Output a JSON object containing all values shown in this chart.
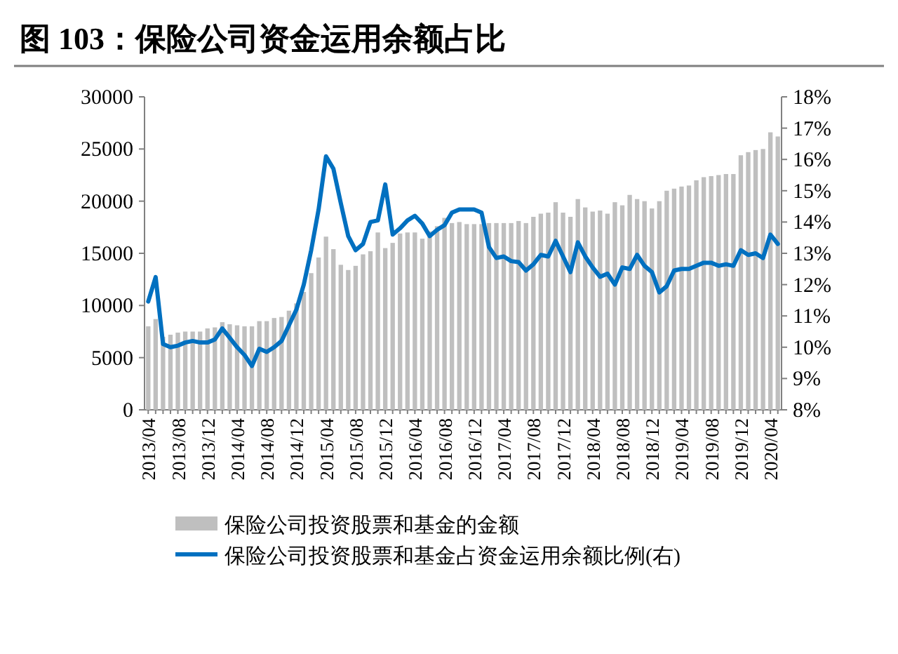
{
  "chart_data": {
    "type": "bar",
    "title": "图 103：保险公司资金运用余额占比",
    "categories": [
      "2013/04",
      null,
      null,
      null,
      "2013/08",
      null,
      null,
      null,
      "2013/12",
      null,
      null,
      null,
      "2014/04",
      null,
      null,
      null,
      "2014/08",
      null,
      null,
      null,
      "2014/12",
      null,
      null,
      null,
      "2015/04",
      null,
      null,
      null,
      "2015/08",
      null,
      null,
      null,
      "2015/12",
      null,
      null,
      null,
      "2016/04",
      null,
      null,
      null,
      "2016/08",
      null,
      null,
      null,
      "2016/12",
      null,
      null,
      null,
      "2017/04",
      null,
      null,
      null,
      "2017/08",
      null,
      null,
      null,
      "2017/12",
      null,
      null,
      null,
      "2018/04",
      null,
      null,
      null,
      "2018/08",
      null,
      null,
      null,
      "2018/12",
      null,
      null,
      null,
      "2019/04",
      null,
      null,
      null,
      "2019/08",
      null,
      null,
      null,
      "2019/12",
      null,
      null,
      null,
      "2020/04",
      null
    ],
    "series": [
      {
        "name": "保险公司投资股票和基金的金额",
        "color": "#bfbfbf",
        "values": [
          8000,
          8700,
          7000,
          7200,
          7400,
          7500,
          7500,
          7500,
          7800,
          7900,
          8400,
          8200,
          8100,
          8000,
          8000,
          8500,
          8500,
          8800,
          8900,
          9500,
          10200,
          11300,
          13100,
          14600,
          16600,
          15400,
          13900,
          13400,
          13800,
          14900,
          15200,
          17000,
          15500,
          16000,
          16900,
          17000,
          17000,
          16400,
          17100,
          17600,
          18400,
          17900,
          18000,
          17800,
          17800,
          17800,
          17900,
          17900,
          17900,
          17900,
          18100,
          17900,
          18500,
          18800,
          18900,
          19900,
          18900,
          18500,
          20200,
          19400,
          19000,
          19100,
          18800,
          19900,
          19600,
          20600,
          20200,
          20000,
          19300,
          20000,
          21000,
          21200,
          21400,
          21500,
          22000,
          22300,
          22400,
          22500,
          22600,
          22600,
          24400,
          24700,
          24900,
          25000,
          26600,
          26200
        ]
      },
      {
        "name": "保险公司投资股票和基金占资金运用余额比例(右)",
        "type": "line",
        "axis": "y2",
        "color": "#0070c0",
        "values": [
          11.46,
          12.24,
          10.1,
          10.0,
          10.05,
          10.15,
          10.2,
          10.15,
          10.15,
          10.25,
          10.6,
          10.3,
          10.0,
          9.75,
          9.4,
          9.95,
          9.85,
          10.0,
          10.2,
          10.7,
          11.2,
          12.0,
          13.1,
          14.4,
          16.1,
          15.7,
          14.6,
          13.55,
          13.1,
          13.3,
          14.0,
          14.05,
          15.2,
          13.6,
          13.8,
          14.05,
          14.2,
          13.95,
          13.55,
          13.75,
          13.9,
          14.3,
          14.4,
          14.4,
          14.4,
          14.3,
          13.2,
          12.85,
          12.9,
          12.75,
          12.72,
          12.45,
          12.65,
          12.95,
          12.9,
          13.4,
          12.9,
          12.4,
          13.35,
          12.9,
          12.55,
          12.25,
          12.35,
          12.0,
          12.55,
          12.5,
          12.95,
          12.6,
          12.4,
          11.75,
          11.95,
          12.45,
          12.5,
          12.5,
          12.6,
          12.7,
          12.7,
          12.6,
          12.65,
          12.6,
          13.1,
          12.95,
          13.0,
          12.85,
          13.6,
          13.3
        ]
      }
    ],
    "ylim": [
      0,
      30000
    ],
    "yticks": [
      0,
      5000,
      10000,
      15000,
      20000,
      25000,
      30000
    ],
    "y2lim": [
      8,
      18
    ],
    "y2ticks": [
      {
        "value": 8,
        "label": "8%"
      },
      {
        "value": 9,
        "label": "9%"
      },
      {
        "value": 10,
        "label": "10%"
      },
      {
        "value": 11,
        "label": "11%"
      },
      {
        "value": 12,
        "label": "12%"
      },
      {
        "value": 13,
        "label": "13%"
      },
      {
        "value": 14,
        "label": "14%"
      },
      {
        "value": 15,
        "label": "15%"
      },
      {
        "value": 16,
        "label": "16%"
      },
      {
        "value": 17,
        "label": "17%"
      },
      {
        "value": 18,
        "label": "18%"
      }
    ],
    "legend": "bottom"
  }
}
